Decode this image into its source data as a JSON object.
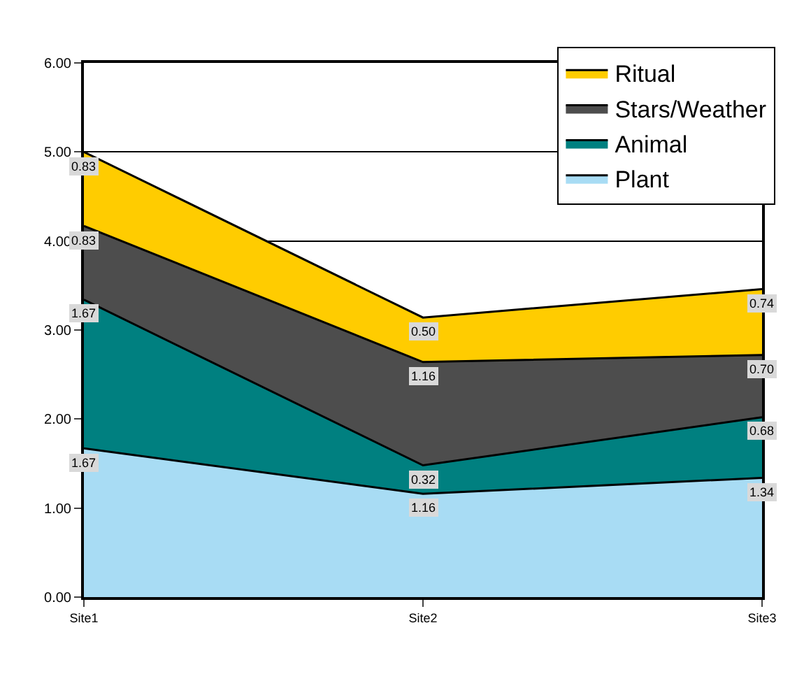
{
  "chart_data": {
    "type": "area",
    "stacked": true,
    "categories": [
      "Site1",
      "Site2",
      "Site3"
    ],
    "series": [
      {
        "name": "Plant",
        "color": "#a8dcf4",
        "values": [
          1.67,
          1.16,
          1.34
        ],
        "value_labels": [
          "1.67",
          "1.16",
          "1.34"
        ]
      },
      {
        "name": "Animal",
        "color": "#008080",
        "values": [
          1.67,
          0.32,
          0.68
        ],
        "value_labels": [
          "1.67",
          "0.32",
          "0.68"
        ]
      },
      {
        "name": "Stars/Weather",
        "color": "#4d4d4d",
        "values": [
          0.83,
          1.16,
          0.7
        ],
        "value_labels": [
          "0.83",
          "1.16",
          "0.70"
        ]
      },
      {
        "name": "Ritual",
        "color": "#ffcc00",
        "values": [
          0.83,
          0.5,
          0.74
        ],
        "value_labels": [
          "0.83",
          "0.50",
          "0.74"
        ]
      }
    ],
    "ylim": [
      0,
      6
    ],
    "yticks": [
      {
        "value": 0,
        "label": "0.00"
      },
      {
        "value": 1,
        "label": "1.00"
      },
      {
        "value": 2,
        "label": "2.00"
      },
      {
        "value": 3,
        "label": "3.00"
      },
      {
        "value": 4,
        "label": "4.00"
      },
      {
        "value": 5,
        "label": "5.00"
      },
      {
        "value": 6,
        "label": "6.00"
      }
    ],
    "grid": "y",
    "legend": "top right"
  }
}
